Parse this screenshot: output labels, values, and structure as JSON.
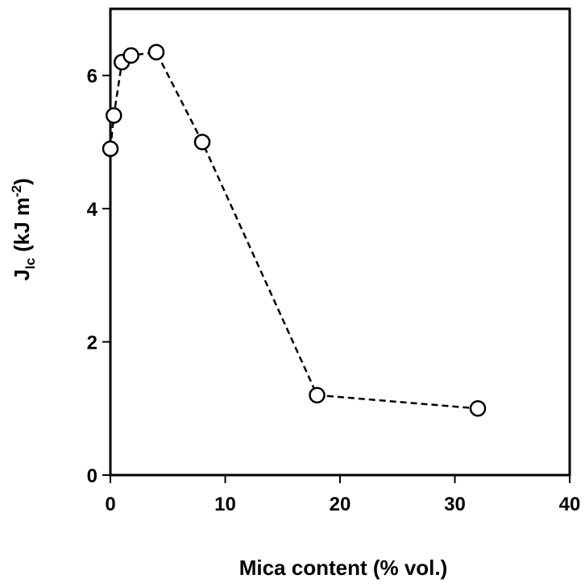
{
  "chart_data": {
    "type": "scatter",
    "xlabel": "Mica content (%  vol.)",
    "ylabel": {
      "main": "J",
      "sub": "Ic",
      "unit": " (kJ m",
      "sup": "-2",
      "close": ")"
    },
    "xlim": [
      0,
      40
    ],
    "ylim": [
      0,
      7
    ],
    "xticks": [
      0,
      10,
      20,
      30,
      40
    ],
    "yticks": [
      0,
      2,
      4,
      6
    ],
    "grid": false,
    "legend": "none",
    "line_style": "dashed",
    "marker": "open-circle",
    "series": [
      {
        "x": [
          0,
          0.3,
          1,
          1.8,
          4,
          8,
          18,
          32
        ],
        "y": [
          4.9,
          5.4,
          6.2,
          6.3,
          6.35,
          5.0,
          1.2,
          1.0
        ]
      }
    ],
    "colors": {
      "line": "#000000",
      "marker_fill": "#ffffff",
      "marker_stroke": "#000000"
    }
  }
}
